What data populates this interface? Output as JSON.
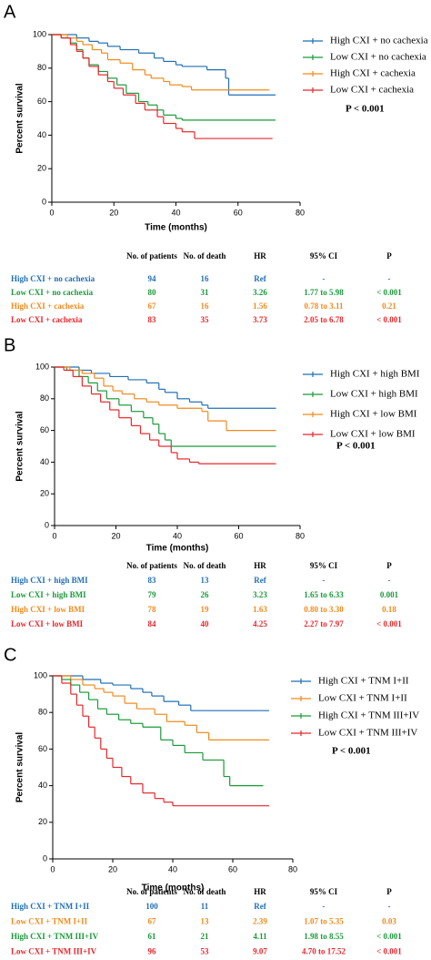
{
  "chart_data": [
    {
      "type": "line",
      "step": true,
      "panel": "A",
      "x_label": "Time (months)",
      "y_label": "Percent survival",
      "xlim": [
        0,
        80
      ],
      "ylim": [
        0,
        100
      ],
      "xticks": [
        0,
        20,
        40,
        60,
        80
      ],
      "yticks": [
        0,
        20,
        40,
        60,
        80,
        100
      ],
      "annotation": "P < 0.001",
      "series": [
        {
          "name": "High CXI + no cachexia",
          "color": "#1f6fb5",
          "x": [
            0,
            5,
            8,
            12,
            15,
            18,
            22,
            28,
            33,
            36,
            40,
            42,
            50,
            56,
            57,
            72
          ],
          "values": [
            100,
            100,
            98,
            96,
            95,
            93,
            91,
            89,
            86,
            84,
            82,
            81,
            79,
            74,
            64,
            64
          ]
        },
        {
          "name": "Low CXI + no cachexia",
          "color": "#1a9a3a",
          "x": [
            0,
            3,
            6,
            8,
            10,
            12,
            15,
            18,
            21,
            24,
            28,
            31,
            34,
            36,
            40,
            42,
            72
          ],
          "values": [
            100,
            98,
            95,
            91,
            86,
            82,
            78,
            74,
            70,
            65,
            60,
            58,
            55,
            52,
            50,
            49,
            49
          ]
        },
        {
          "name": "High CXI + cachexia",
          "color": "#f08a1c",
          "x": [
            0,
            5,
            8,
            10,
            13,
            16,
            18,
            22,
            26,
            30,
            32,
            36,
            38,
            42,
            45,
            70
          ],
          "values": [
            100,
            98,
            96,
            94,
            91,
            89,
            85,
            83,
            79,
            76,
            74,
            72,
            70,
            69,
            67,
            67
          ]
        },
        {
          "name": "Low CXI + cachexia",
          "color": "#e8262b",
          "x": [
            0,
            3,
            6,
            8,
            10,
            12,
            15,
            18,
            20,
            23,
            27,
            30,
            34,
            36,
            40,
            42,
            46,
            71
          ],
          "values": [
            100,
            98,
            94,
            90,
            86,
            81,
            76,
            72,
            68,
            64,
            59,
            55,
            51,
            47,
            44,
            42,
            38,
            38
          ]
        }
      ],
      "table": {
        "columns": [
          "No. of patients",
          "No. of death",
          "HR",
          "95% CI",
          "P"
        ],
        "rows": [
          [
            "High CXI + no cachexia",
            94,
            16,
            "Ref",
            "-",
            "-"
          ],
          [
            "Low CXI + no cachexia",
            80,
            31,
            3.26,
            "1.77 to 5.98",
            "< 0.001"
          ],
          [
            "High CXI + cachexia",
            67,
            16,
            1.56,
            "0.78 to 3.11",
            0.21
          ],
          [
            "Low CXI + cachexia",
            83,
            35,
            3.73,
            "2.05 to 6.78",
            "< 0.001"
          ]
        ]
      }
    },
    {
      "type": "line",
      "step": true,
      "panel": "B",
      "x_label": "Time (months)",
      "y_label": "Percent survival",
      "xlim": [
        0,
        80
      ],
      "ylim": [
        0,
        100
      ],
      "xticks": [
        0,
        20,
        40,
        60,
        80
      ],
      "yticks": [
        0,
        20,
        40,
        60,
        80,
        100
      ],
      "annotation": "P < 0.001",
      "series": [
        {
          "name": "High CXI + high BMI",
          "color": "#1f6fb5",
          "x": [
            0,
            8,
            12,
            18,
            24,
            30,
            34,
            36,
            40,
            44,
            48,
            50,
            72
          ],
          "values": [
            100,
            98,
            96,
            94,
            92,
            90,
            86,
            84,
            80,
            78,
            76,
            74,
            74
          ]
        },
        {
          "name": "Low CXI + high BMI",
          "color": "#1a9a3a",
          "x": [
            0,
            4,
            8,
            11,
            14,
            17,
            21,
            25,
            29,
            32,
            34,
            36,
            38,
            72
          ],
          "values": [
            100,
            98,
            94,
            90,
            85,
            80,
            76,
            72,
            68,
            64,
            58,
            54,
            50,
            50
          ]
        },
        {
          "name": "High CXI + low BMI",
          "color": "#f08a1c",
          "x": [
            0,
            5,
            9,
            13,
            16,
            19,
            22,
            26,
            30,
            34,
            40,
            48,
            50,
            56,
            72
          ],
          "values": [
            100,
            98,
            96,
            93,
            88,
            85,
            83,
            80,
            78,
            76,
            74,
            72,
            66,
            60,
            60
          ]
        },
        {
          "name": "Low CXI + low BMI",
          "color": "#e8262b",
          "x": [
            0,
            3,
            6,
            9,
            12,
            15,
            18,
            21,
            25,
            28,
            31,
            34,
            38,
            40,
            44,
            47,
            72
          ],
          "values": [
            100,
            98,
            94,
            88,
            83,
            78,
            73,
            68,
            63,
            58,
            54,
            50,
            46,
            42,
            40,
            39,
            39
          ]
        }
      ],
      "table": {
        "columns": [
          "No. of patients",
          "No. of death",
          "HR",
          "95% CI",
          "P"
        ],
        "rows": [
          [
            "High CXI + high BMI",
            83,
            13,
            "Ref",
            "-",
            "-"
          ],
          [
            "Low CXI + high BMI",
            79,
            26,
            3.23,
            "1.65 to 6.33",
            0.001
          ],
          [
            "High CXI + low BMI",
            78,
            19,
            1.63,
            "0.80 to 3.30",
            0.18
          ],
          [
            "Low CXI + low BMI",
            84,
            40,
            4.25,
            "2.27 to 7.97",
            "< 0.001"
          ]
        ]
      }
    },
    {
      "type": "line",
      "step": true,
      "panel": "C",
      "x_label": "Time (months)",
      "y_label": "Percent survival",
      "xlim": [
        0,
        80
      ],
      "ylim": [
        0,
        100
      ],
      "xticks": [
        0,
        20,
        40,
        60,
        80
      ],
      "yticks": [
        0,
        20,
        40,
        60,
        80,
        100
      ],
      "annotation": "P < 0.001",
      "series": [
        {
          "name": "High CXI + TNM I+II",
          "color": "#1f6fb5",
          "x": [
            0,
            10,
            16,
            20,
            26,
            30,
            33,
            37,
            42,
            46,
            72
          ],
          "values": [
            100,
            98,
            96,
            95,
            93,
            91,
            89,
            86,
            84,
            81,
            81
          ]
        },
        {
          "name": "Low CXI + TNM I+II",
          "color": "#f08a1c",
          "x": [
            0,
            6,
            10,
            14,
            17,
            20,
            24,
            28,
            34,
            38,
            44,
            48,
            52,
            72
          ],
          "values": [
            100,
            98,
            95,
            93,
            91,
            89,
            85,
            82,
            79,
            75,
            73,
            69,
            65,
            65
          ]
        },
        {
          "name": "High CXI + TNM III+IV",
          "color": "#1a9a3a",
          "x": [
            0,
            3,
            6,
            9,
            12,
            15,
            18,
            22,
            26,
            30,
            36,
            40,
            44,
            50,
            57,
            59,
            70
          ],
          "values": [
            100,
            98,
            95,
            91,
            87,
            82,
            79,
            76,
            74,
            72,
            65,
            62,
            58,
            54,
            45,
            40,
            40
          ]
        },
        {
          "name": "Low CXI + TNM III+IV",
          "color": "#e8262b",
          "x": [
            0,
            3,
            6,
            8,
            10,
            12,
            14,
            16,
            18,
            20,
            23,
            26,
            30,
            34,
            37,
            40,
            72
          ],
          "values": [
            100,
            96,
            90,
            84,
            78,
            72,
            66,
            60,
            55,
            50,
            45,
            41,
            36,
            33,
            31,
            29,
            29
          ]
        }
      ],
      "table": {
        "columns": [
          "No. of patients",
          "No. of death",
          "HR",
          "95% CI",
          "P"
        ],
        "rows": [
          [
            "High CXI + TNM I+II",
            100,
            11,
            "Ref",
            "-",
            "-"
          ],
          [
            "Low CXI + TNM I+II",
            67,
            13,
            2.39,
            "1.07 to 5.35",
            0.03
          ],
          [
            "High CXI + TNM III+IV",
            61,
            21,
            4.11,
            "1.98 to 8.55",
            "< 0.001"
          ],
          [
            "Low CXI + TNM III+IV",
            96,
            53,
            9.07,
            "4.70 to 17.52",
            "< 0.001"
          ]
        ]
      }
    }
  ]
}
